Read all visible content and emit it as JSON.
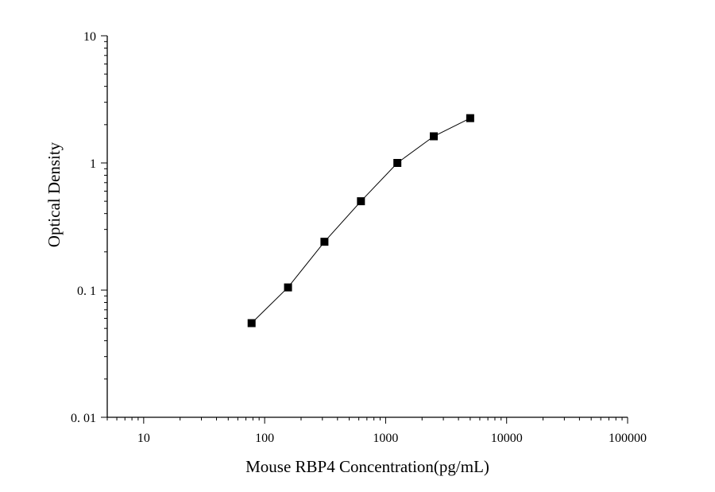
{
  "chart_data": {
    "type": "scatter",
    "xlabel": "Mouse RBP4 Concentration(pg/mL)",
    "ylabel": "Optical Density",
    "xscale": "log",
    "yscale": "log",
    "xlim": [
      5,
      100000
    ],
    "ylim": [
      0.01,
      10
    ],
    "x_tick_labels": [
      "10",
      "100",
      "1000",
      "10000",
      "100000"
    ],
    "y_tick_labels": [
      "0. 01",
      "0. 1",
      "1",
      "10"
    ],
    "series": [
      {
        "x": [
          78,
          156,
          312,
          625,
          1250,
          2500,
          5000
        ],
        "y": [
          0.055,
          0.105,
          0.24,
          0.5,
          1.0,
          1.62,
          2.25
        ]
      }
    ],
    "marker": "square",
    "color": "#000000",
    "grid": false
  }
}
